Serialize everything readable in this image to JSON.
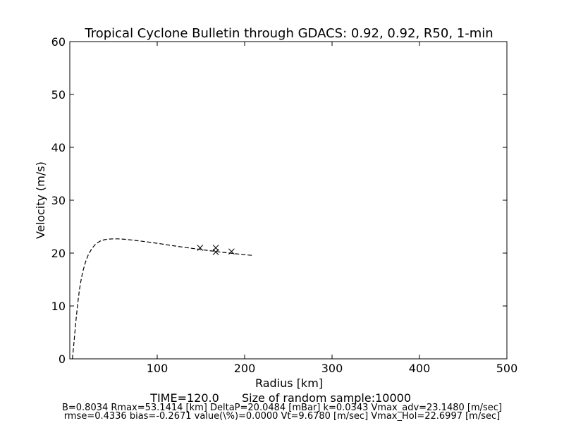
{
  "chart_data": {
    "type": "line",
    "title": "Tropical Cyclone Bulletin through GDACS: 0.92, 0.92, R50, 1-min",
    "xlabel": "Radius [km]",
    "ylabel": "Velocity (m/s)",
    "xlim": [
      0,
      500
    ],
    "ylim": [
      0,
      60
    ],
    "xticks": [
      100,
      200,
      300,
      400,
      500
    ],
    "yticks": [
      0,
      10,
      20,
      30,
      40,
      50,
      60
    ],
    "grid": false,
    "series": [
      {
        "style": "dashed-line",
        "color": "#000000",
        "x": [
          3,
          5,
          7,
          9,
          11,
          13,
          15,
          18,
          21,
          25,
          30,
          35,
          40,
          45,
          50,
          55,
          60,
          70,
          80,
          90,
          100,
          120,
          140,
          160,
          180,
          200,
          210
        ],
        "y": [
          0,
          3.5,
          7.2,
          10.4,
          13.0,
          15.0,
          16.6,
          18.3,
          19.6,
          20.8,
          21.8,
          22.3,
          22.55,
          22.65,
          22.7,
          22.7,
          22.65,
          22.5,
          22.3,
          22.1,
          21.85,
          21.35,
          20.9,
          20.45,
          20.05,
          19.7,
          19.55
        ]
      },
      {
        "style": "x-markers",
        "color": "#000000",
        "x": [
          149,
          167,
          167,
          185
        ],
        "y": [
          21.0,
          21.0,
          20.2,
          20.3
        ]
      }
    ]
  },
  "footer": {
    "time_label": "TIME=120.0",
    "sample_label": "Size of random sample:10000"
  },
  "stats": {
    "line1": "B=0.8034 Rmax=53.1414 [km]  DeltaP=20.0484 [mBar] k=0.0343 Vmax_adv=23.1480 [m/sec]",
    "line2": "rmse=0.4336 bias=-0.2671 value(\\%)=0.0000 Vt=9.6780 [m/sec] Vmax_Hol=22.6997 [m/sec]"
  }
}
